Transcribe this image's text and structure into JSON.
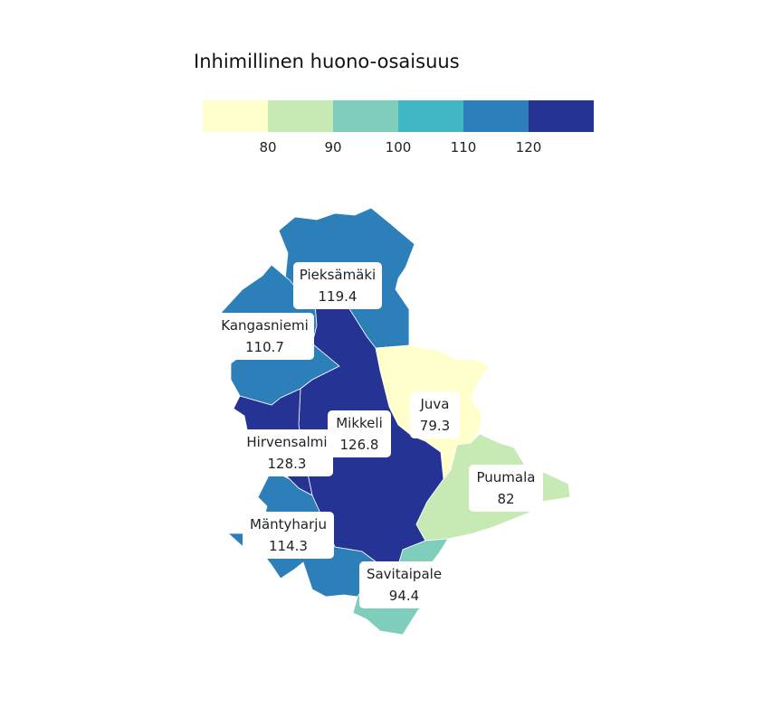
{
  "title": "Inhimillinen huono-osaisuus",
  "legend": {
    "colors": [
      "#ffffcc",
      "#c7e9b4",
      "#7fcdbb",
      "#41b6c4",
      "#2c7fb8",
      "#253494"
    ],
    "ticks": [
      "80",
      "90",
      "100",
      "110",
      "120"
    ]
  },
  "regions": [
    {
      "name": "Pieksämäki",
      "value": "119.4",
      "color": "#2c7fb8"
    },
    {
      "name": "Kangasniemi",
      "value": "110.7",
      "color": "#2c7fb8"
    },
    {
      "name": "Juva",
      "value": "79.3",
      "color": "#ffffcc"
    },
    {
      "name": "Mikkeli",
      "value": "126.8",
      "color": "#253494"
    },
    {
      "name": "Hirvensalmi",
      "value": "128.3",
      "color": "#253494"
    },
    {
      "name": "Puumala",
      "value": "82",
      "color": "#c7e9b4"
    },
    {
      "name": "Mäntyharju",
      "value": "114.3",
      "color": "#2c7fb8"
    },
    {
      "name": "Savitaipale",
      "value": "94.4",
      "color": "#7fcdbb"
    }
  ]
}
